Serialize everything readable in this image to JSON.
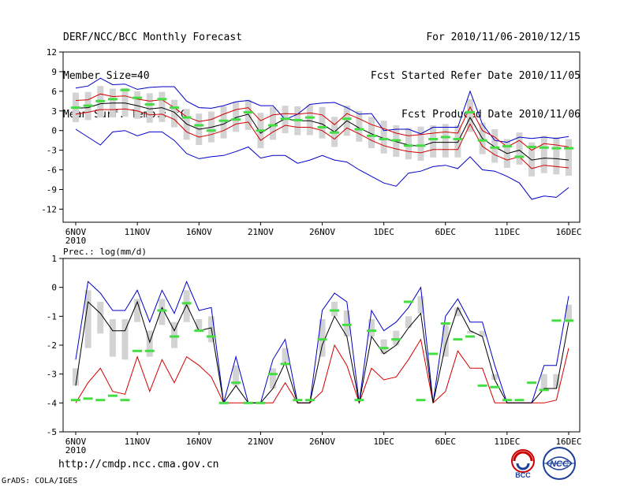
{
  "header": {
    "left": [
      "DERF/NCC/BCC Monthly Forecast",
      "Member Size=40",
      "Mean Surf. Temp.: °C"
    ],
    "right": [
      "For 2010/11/06-2010/12/15",
      "Fcst Started Refer Date 2010/11/05",
      "Fcst Produced Date 2010/11/06"
    ]
  },
  "footer": {
    "url": "http://cmdp.ncc.cma.gov.cn",
    "grads": "GrADS: COLA/IGES",
    "logo_bcc": "BCC",
    "logo_ncc": "NCC"
  },
  "colors": {
    "upper": "#0000c8",
    "lower": "#d20000",
    "mean": "#000000",
    "box": "#d3d3d3",
    "member": "#44dd44"
  },
  "chart_data": [
    {
      "type": "line",
      "title": "Mean Surf. Temp.: °C",
      "xlabel": "",
      "ylabel": "",
      "x_tick_labels": [
        "6NOV\n2010",
        "11NOV",
        "16NOV",
        "21NOV",
        "26NOV",
        "1DEC",
        "6DEC",
        "11DEC",
        "16DEC"
      ],
      "y_ticks": [
        12,
        9,
        6,
        3,
        0,
        -3,
        -6,
        -9,
        -12
      ],
      "ylim": [
        -14,
        12
      ],
      "days": 41,
      "series": [
        {
          "name": "upper",
          "values": [
            6.5,
            6.8,
            8,
            7,
            7.1,
            6.3,
            6.6,
            6.7,
            6.7,
            4.5,
            3.5,
            3.4,
            3.8,
            4.4,
            4.6,
            3.8,
            3.8,
            1.7,
            2.5,
            4,
            4.2,
            4.3,
            3.5,
            2.5,
            2.6,
            0,
            0.2,
            0.2,
            -0.5,
            0.5,
            0.5,
            0.5,
            6,
            1,
            -1.5,
            -1.8,
            -1,
            -1.2,
            -1,
            -1.2,
            -0.9
          ]
        },
        {
          "name": "plus_sd",
          "values": [
            4.6,
            4.7,
            5.6,
            5.2,
            5.3,
            4.8,
            4.5,
            4.7,
            3.5,
            2.1,
            1.4,
            1.7,
            2.5,
            3.2,
            3.5,
            1.5,
            2.4,
            2.6,
            2.5,
            2.7,
            2.4,
            0.9,
            2.6,
            1.8,
            0.9,
            0.3,
            -0.4,
            -0.8,
            -0.6,
            -0.4,
            -0.2,
            -0.4,
            3.6,
            0,
            -1,
            -2.5,
            -1.5,
            -3,
            -2,
            -2.2,
            -2.5
          ]
        },
        {
          "name": "mean",
          "values": [
            3.4,
            3.5,
            4.1,
            4.2,
            4.2,
            3.8,
            3.3,
            3.5,
            2.8,
            1,
            0.2,
            0.5,
            1,
            2,
            2.5,
            -0.4,
            0.8,
            1.8,
            1.5,
            1.5,
            1,
            -0.2,
            1.5,
            0.4,
            -0.5,
            -1.2,
            -1.7,
            -2.2,
            -2.4,
            -1.8,
            -1.8,
            -1.8,
            2,
            -1.2,
            -2.5,
            -3.5,
            -3,
            -4.5,
            -4.2,
            -4.3,
            -4.5
          ]
        },
        {
          "name": "minus_sd",
          "values": [
            2.5,
            2.8,
            3.2,
            3.2,
            3.3,
            3,
            2.4,
            2.5,
            1.7,
            -0.2,
            -1,
            -0.6,
            0,
            1,
            1.3,
            -1.5,
            -0.2,
            0.8,
            0.5,
            0.5,
            0,
            -1.3,
            0.4,
            -0.5,
            -1.5,
            -2.3,
            -2.8,
            -3.2,
            -3.4,
            -2.9,
            -2.9,
            -2.9,
            1,
            -2.4,
            -3.7,
            -4.5,
            -4,
            -5.8,
            -5.3,
            -5.5,
            -5.7
          ]
        },
        {
          "name": "lower",
          "values": [
            0.2,
            -1,
            -2.2,
            -0.2,
            0,
            -0.8,
            -0.2,
            -0.2,
            -1.5,
            -3.5,
            -4.3,
            -4,
            -3.8,
            -3.2,
            -2.5,
            -4.2,
            -3.8,
            -3.8,
            -5,
            -4.5,
            -3.8,
            -4.5,
            -4.8,
            -6,
            -7,
            -8,
            -8.5,
            -6.5,
            -6.2,
            -5.5,
            -5.3,
            -5.8,
            -4,
            -6,
            -6.2,
            -7,
            -8,
            -10.5,
            -10,
            -10.2,
            -8.7
          ]
        },
        {
          "name": "member",
          "values": [
            3.5,
            3.8,
            4.5,
            4.8,
            6.2,
            5,
            4,
            4.8,
            3.5,
            2,
            0.8,
            0,
            1.5,
            1.7,
            2.8,
            0,
            0.8,
            1.8,
            1.6,
            2,
            0.5,
            -0.3,
            1.8,
            0.2,
            -0.8,
            -1.3,
            -1.5,
            -2.3,
            -2.3,
            -1.3,
            -1,
            -1.3,
            2.8,
            -1.5,
            -2.6,
            -2.4,
            -4,
            -2.5,
            -2.6,
            -2.7,
            -2.7
          ]
        }
      ]
    },
    {
      "type": "line",
      "title": "Prec.: log(mm/d)",
      "xlabel": "",
      "ylabel": "",
      "x_tick_labels": [
        "6NOV\n2010",
        "11NOV",
        "16NOV",
        "21NOV",
        "26NOV",
        "1DEC",
        "6DEC",
        "11DEC",
        "16DEC"
      ],
      "y_ticks": [
        1,
        0,
        -1,
        -2,
        -3,
        -4,
        -5
      ],
      "ylim": [
        -5,
        1
      ],
      "days": 41,
      "series": [
        {
          "name": "upper",
          "values": [
            -2.5,
            0.2,
            -0.2,
            -0.8,
            -0.8,
            -0.1,
            -1.2,
            -0.1,
            -0.9,
            0.2,
            -0.8,
            -0.7,
            -4,
            -2.4,
            -4,
            -4,
            -2.5,
            -1.8,
            -4,
            -4,
            -0.8,
            -0.2,
            -0.5,
            -4,
            -0.8,
            -1.5,
            -1.2,
            -0.7,
            0,
            -4,
            -1,
            -0.4,
            -1.2,
            -1.2,
            -2.7,
            -4,
            -4,
            -4,
            -2.7,
            -2.7,
            -0.3
          ]
        },
        {
          "name": "mean",
          "values": [
            -3.4,
            -0.5,
            -0.9,
            -1.5,
            -1.5,
            -0.5,
            -1.9,
            -0.7,
            -1.5,
            -0.6,
            -1.5,
            -1.4,
            -4,
            -3.4,
            -4,
            -4,
            -3.5,
            -2.6,
            -4,
            -4,
            -2,
            -1,
            -1.7,
            -4,
            -1.7,
            -2.3,
            -2,
            -1.4,
            -0.9,
            -4,
            -2,
            -0.7,
            -1.5,
            -1.7,
            -3.2,
            -4,
            -4,
            -4,
            -3.5,
            -3.5,
            -1.2
          ]
        },
        {
          "name": "lower",
          "values": [
            -4,
            -3.3,
            -2.8,
            -3.6,
            -3.7,
            -2.4,
            -3.6,
            -2.5,
            -3.3,
            -2.4,
            -2.7,
            -3.1,
            -4,
            -4,
            -4,
            -4,
            -4,
            -3.3,
            -4,
            -4,
            -3.6,
            -2,
            -2.7,
            -4,
            -2.8,
            -3.2,
            -3.1,
            -2.5,
            -1.8,
            -4,
            -3.6,
            -2.2,
            -2.8,
            -2.8,
            -4,
            -4,
            -4,
            -4,
            -4,
            -3.9,
            -2.1
          ]
        },
        {
          "name": "member",
          "values": [
            -3.9,
            -3.85,
            -3.9,
            -3.75,
            -3.9,
            -2.2,
            -2.2,
            -0.8,
            -1.7,
            -0.55,
            -1.5,
            -1.7,
            -4,
            -3.3,
            -4,
            -4,
            -3,
            -2.65,
            -3.9,
            -3.9,
            -1.8,
            -0.8,
            -1.3,
            -3.9,
            -1.5,
            -2.1,
            -1.8,
            -0.5,
            -3.9,
            -2.3,
            -1.25,
            -1.8,
            -1.7,
            -3.4,
            -3.45,
            -3.9,
            -3.9,
            -3.3,
            -3.55,
            -1.15,
            -1.15
          ]
        }
      ]
    }
  ]
}
